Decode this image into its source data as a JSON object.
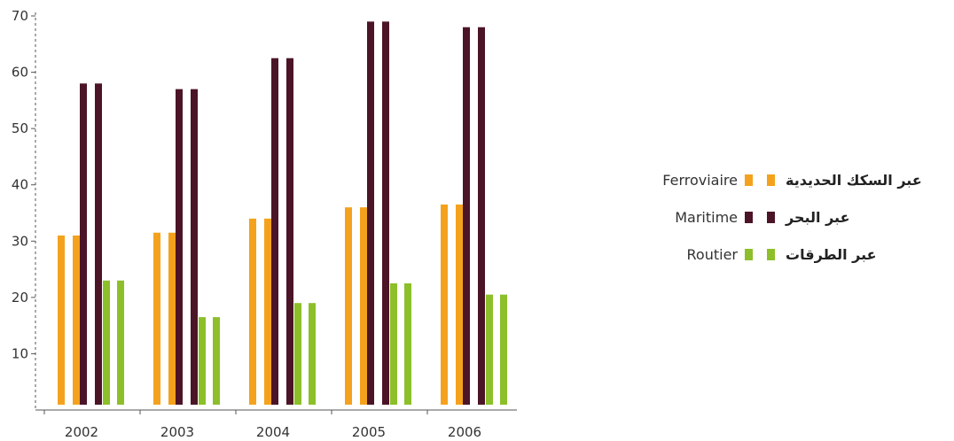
{
  "chart_data": {
    "type": "bar",
    "categories": [
      "2002",
      "2003",
      "2004",
      "2005",
      "2006"
    ],
    "series": [
      {
        "name": "Ferroviaire",
        "name_ar": "عبر السكك الحديدية",
        "color": "#f4a21d",
        "values": [
          31,
          31.5,
          34,
          36,
          36.5
        ]
      },
      {
        "name": "Maritime",
        "name_ar": "عبر البحر",
        "color": "#4b1527",
        "values": [
          58,
          57,
          62.5,
          69,
          68
        ]
      },
      {
        "name": "Routier",
        "name_ar": "عبر الطرقات",
        "color": "#8cbf2a",
        "values": [
          23,
          16.5,
          19,
          22.5,
          20.5
        ]
      }
    ],
    "ylim": [
      0,
      70
    ],
    "yticks": [
      10,
      20,
      30,
      40,
      50,
      60,
      70
    ],
    "title": "",
    "xlabel": "",
    "ylabel": "",
    "legend_position": "right",
    "grid": false
  },
  "legend": [
    {
      "fr": "Ferroviaire",
      "ar": "عبر السكك الحديدية",
      "color": "#f4a21d"
    },
    {
      "fr": "Maritime",
      "ar": "عبر البحر",
      "color": "#4b1527"
    },
    {
      "fr": "Routier",
      "ar": "عبر الطرقات",
      "color": "#8cbf2a"
    }
  ]
}
